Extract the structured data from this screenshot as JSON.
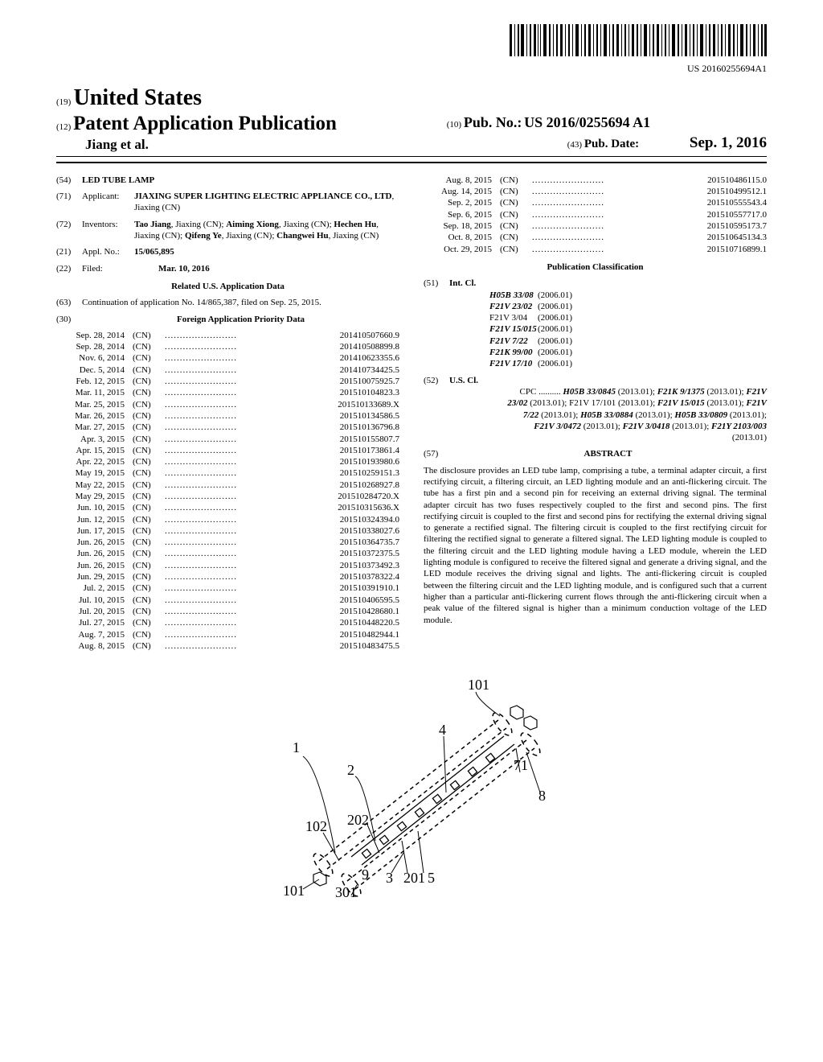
{
  "barcode_label": "US 20160255694A1",
  "header": {
    "country_prefix": "(19)",
    "country": "United States",
    "pub_prefix": "(12)",
    "pub_type": "Patent Application Publication",
    "inventor_line": "Jiang et al.",
    "pubno_prefix": "(10)",
    "pubno_label": "Pub. No.:",
    "pubno": "US 2016/0255694 A1",
    "pubdate_prefix": "(43)",
    "pubdate_label": "Pub. Date:",
    "pubdate": "Sep. 1, 2016"
  },
  "fields": {
    "title_num": "(54)",
    "title": "LED TUBE LAMP",
    "applicant_num": "(71)",
    "applicant_label": "Applicant:",
    "applicant": "JIAXING SUPER LIGHTING ELECTRIC APPLIANCE CO., LTD",
    "applicant_loc": ", Jiaxing (CN)",
    "inventors_num": "(72)",
    "inventors_label": "Inventors:",
    "inventors": "Tao Jiang, Jiaxing (CN); Aiming Xiong, Jiaxing (CN); Hechen Hu, Jiaxing (CN); Qifeng Ye, Jiaxing (CN); Changwei Hu, Jiaxing (CN)",
    "appl_num_num": "(21)",
    "appl_num_label": "Appl. No.:",
    "appl_num": "15/065,895",
    "filed_num": "(22)",
    "filed_label": "Filed:",
    "filed": "Mar. 10, 2016",
    "related_title": "Related U.S. Application Data",
    "cont_num": "(63)",
    "cont": "Continuation of application No. 14/865,387, filed on Sep. 25, 2015.",
    "foreign_num": "(30)",
    "foreign_title": "Foreign Application Priority Data"
  },
  "priority": [
    {
      "date": "Sep. 28, 2014",
      "cc": "(CN)",
      "num": "201410507660.9"
    },
    {
      "date": "Sep. 28, 2014",
      "cc": "(CN)",
      "num": "201410508899.8"
    },
    {
      "date": "Nov. 6, 2014",
      "cc": "(CN)",
      "num": "201410623355.6"
    },
    {
      "date": "Dec. 5, 2014",
      "cc": "(CN)",
      "num": "201410734425.5"
    },
    {
      "date": "Feb. 12, 2015",
      "cc": "(CN)",
      "num": "201510075925.7"
    },
    {
      "date": "Mar. 11, 2015",
      "cc": "(CN)",
      "num": "201510104823.3"
    },
    {
      "date": "Mar. 25, 2015",
      "cc": "(CN)",
      "num": "201510133689.X"
    },
    {
      "date": "Mar. 26, 2015",
      "cc": "(CN)",
      "num": "201510134586.5"
    },
    {
      "date": "Mar. 27, 2015",
      "cc": "(CN)",
      "num": "201510136796.8"
    },
    {
      "date": "Apr. 3, 2015",
      "cc": "(CN)",
      "num": "201510155807.7"
    },
    {
      "date": "Apr. 15, 2015",
      "cc": "(CN)",
      "num": "201510173861.4"
    },
    {
      "date": "Apr. 22, 2015",
      "cc": "(CN)",
      "num": "201510193980.6"
    },
    {
      "date": "May 19, 2015",
      "cc": "(CN)",
      "num": "201510259151.3"
    },
    {
      "date": "May 22, 2015",
      "cc": "(CN)",
      "num": "201510268927.8"
    },
    {
      "date": "May 29, 2015",
      "cc": "(CN)",
      "num": "201510284720.X"
    },
    {
      "date": "Jun. 10, 2015",
      "cc": "(CN)",
      "num": "201510315636.X"
    },
    {
      "date": "Jun. 12, 2015",
      "cc": "(CN)",
      "num": "201510324394.0"
    },
    {
      "date": "Jun. 17, 2015",
      "cc": "(CN)",
      "num": "201510338027.6"
    },
    {
      "date": "Jun. 26, 2015",
      "cc": "(CN)",
      "num": "201510364735.7"
    },
    {
      "date": "Jun. 26, 2015",
      "cc": "(CN)",
      "num": "201510372375.5"
    },
    {
      "date": "Jun. 26, 2015",
      "cc": "(CN)",
      "num": "201510373492.3"
    },
    {
      "date": "Jun. 29, 2015",
      "cc": "(CN)",
      "num": "201510378322.4"
    },
    {
      "date": "Jul. 2, 2015",
      "cc": "(CN)",
      "num": "201510391910.1"
    },
    {
      "date": "Jul. 10, 2015",
      "cc": "(CN)",
      "num": "201510406595.5"
    },
    {
      "date": "Jul. 20, 2015",
      "cc": "(CN)",
      "num": "201510428680.1"
    },
    {
      "date": "Jul. 27, 2015",
      "cc": "(CN)",
      "num": "201510448220.5"
    },
    {
      "date": "Aug. 7, 2015",
      "cc": "(CN)",
      "num": "201510482944.1"
    },
    {
      "date": "Aug. 8, 2015",
      "cc": "(CN)",
      "num": "201510483475.5"
    }
  ],
  "priority2": [
    {
      "date": "Aug. 8, 2015",
      "cc": "(CN)",
      "num": "201510486115.0"
    },
    {
      "date": "Aug. 14, 2015",
      "cc": "(CN)",
      "num": "201510499512.1"
    },
    {
      "date": "Sep. 2, 2015",
      "cc": "(CN)",
      "num": "201510555543.4"
    },
    {
      "date": "Sep. 6, 2015",
      "cc": "(CN)",
      "num": "201510557717.0"
    },
    {
      "date": "Sep. 18, 2015",
      "cc": "(CN)",
      "num": "201510595173.7"
    },
    {
      "date": "Oct. 8, 2015",
      "cc": "(CN)",
      "num": "201510645134.3"
    },
    {
      "date": "Oct. 29, 2015",
      "cc": "(CN)",
      "num": "201510716899.1"
    }
  ],
  "classif": {
    "title": "Publication Classification",
    "intcl_num": "(51)",
    "intcl_label": "Int. Cl.",
    "intcl": [
      {
        "code": "H05B 33/08",
        "ver": "(2006.01)",
        "ital": true
      },
      {
        "code": "F21V 23/02",
        "ver": "(2006.01)",
        "ital": true
      },
      {
        "code": "F21V 3/04",
        "ver": "(2006.01)",
        "ital": false
      },
      {
        "code": "F21V 15/015",
        "ver": "(2006.01)",
        "ital": true
      },
      {
        "code": "F21V 7/22",
        "ver": "(2006.01)",
        "ital": true
      },
      {
        "code": "F21K 99/00",
        "ver": "(2006.01)",
        "ital": true
      },
      {
        "code": "F21V 17/10",
        "ver": "(2006.01)",
        "ital": true
      }
    ],
    "uscl_num": "(52)",
    "uscl_label": "U.S. Cl.",
    "cpc_label": "CPC",
    "cpc": "H05B 33/0845 (2013.01); F21K 9/1375 (2013.01); F21V 23/02 (2013.01); F21V 17/101 (2013.01); F21V 15/015 (2013.01); F21V 7/22 (2013.01); H05B 33/0884 (2013.01); H05B 33/0809 (2013.01); F21V 3/0472 (2013.01); F21V 3/0418 (2013.01); F21Y 2103/003 (2013.01)"
  },
  "abstract": {
    "num": "(57)",
    "title": "ABSTRACT",
    "text": "The disclosure provides an LED tube lamp, comprising a tube, a terminal adapter circuit, a first rectifying circuit, a filtering circuit, an LED lighting module and an anti-flickering circuit. The tube has a first pin and a second pin for receiving an external driving signal. The terminal adapter circuit has two fuses respectively coupled to the first and second pins. The first rectifying circuit is coupled to the first and second pins for rectifying the external driving signal to generate a rectified signal. The filtering circuit is coupled to the first rectifying circuit for filtering the rectified signal to generate a filtered signal. The LED lighting module is coupled to the filtering circuit and the LED lighting module having a LED module, wherein the LED lighting module is configured to receive the filtered signal and generate a driving signal, and the LED module receives the driving signal and lights. The anti-flickering circuit is coupled between the filtering circuit and the LED lighting module, and is configured such that a current higher than a particular anti-flickering current flows through the anti-flickering circuit when a peak value of the filtered signal is higher than a minimum conduction voltage of the LED module."
  },
  "figure": {
    "labels": {
      "l101a": "101",
      "l101b": "101",
      "l1": "1",
      "l2": "2",
      "l3": "3",
      "l4": "4",
      "l5": "5",
      "l71": "71",
      "l8": "8",
      "l9": "9",
      "l102": "102",
      "l201": "201",
      "l202": "202",
      "l301": "301"
    }
  }
}
